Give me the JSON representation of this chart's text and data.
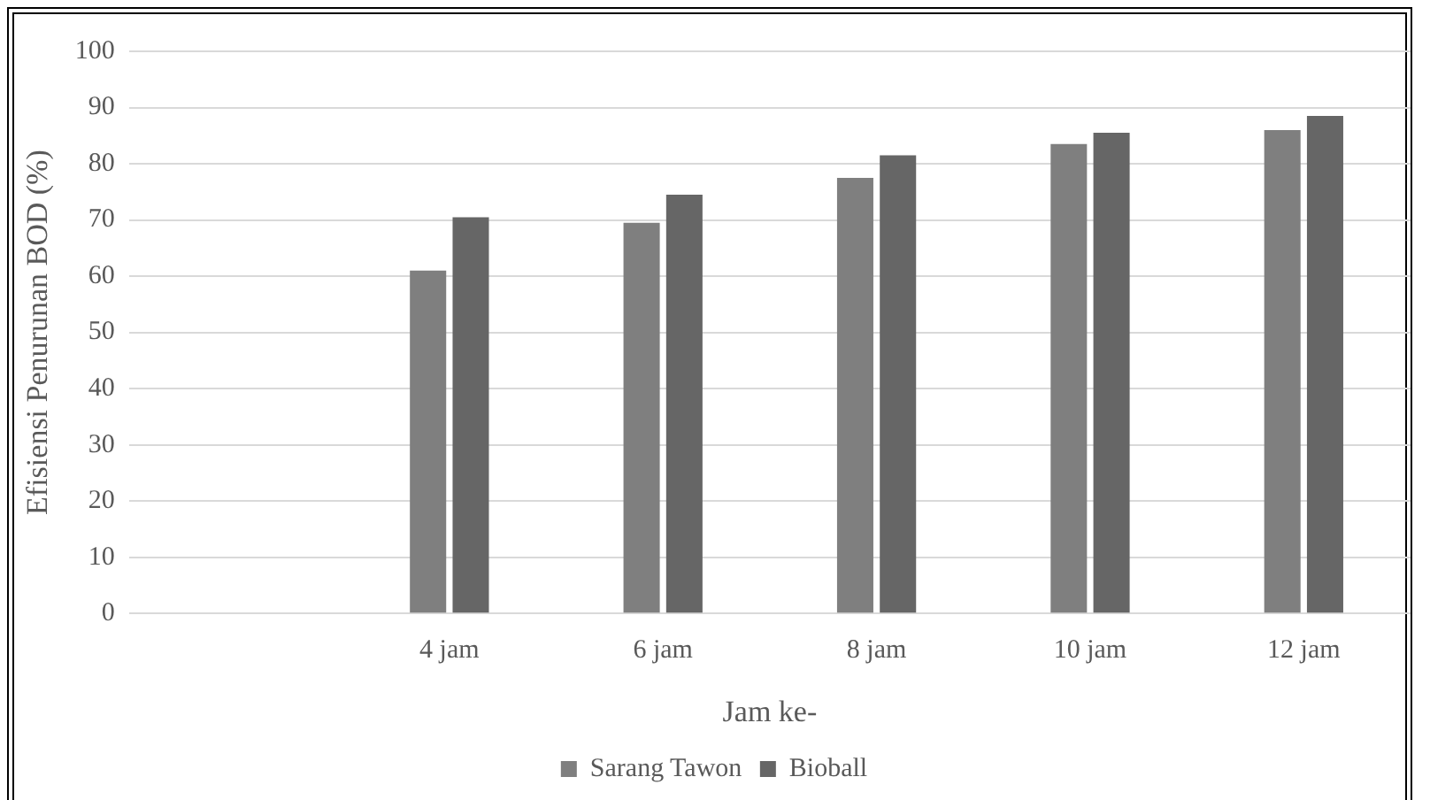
{
  "chart_data": {
    "type": "bar",
    "xlabel": "Jam ke-",
    "ylabel": "Efisiensi Penurunan BOD (%)",
    "categories": [
      null,
      "4 jam",
      "6 jam",
      "8 jam",
      "10 jam",
      "12 jam"
    ],
    "series": [
      {
        "name": "Sarang Tawon",
        "color": "#7f7f7f",
        "values": [
          null,
          61,
          69.5,
          77.5,
          83.5,
          86
        ]
      },
      {
        "name": "Bioball",
        "color": "#666666",
        "values": [
          null,
          70.5,
          74.5,
          81.5,
          85.5,
          88.5
        ]
      }
    ],
    "ylim": [
      0,
      100
    ],
    "yticks": [
      0,
      10,
      20,
      30,
      40,
      50,
      60,
      70,
      80,
      90,
      100
    ],
    "grid": "y",
    "legend": "bottom"
  }
}
